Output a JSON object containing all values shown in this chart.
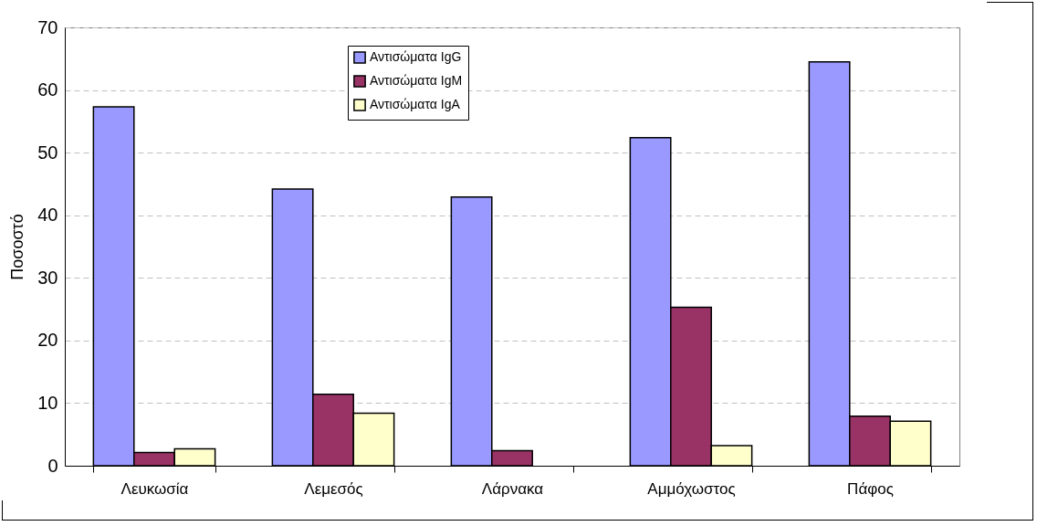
{
  "chart_data": {
    "type": "bar",
    "ylabel": "Ποσοστό",
    "categories": [
      "Λευκωσία",
      "Λεμεσός",
      "Λάρνακα",
      "Αμμόχωστος",
      "Πάφος"
    ],
    "series": [
      {
        "name": "Αντισώματα IgG",
        "color": "#9999ff",
        "values": [
          57.3,
          44.2,
          42.9,
          52.4,
          64.5
        ]
      },
      {
        "name": "Αντισώματα IgM",
        "color": "#993366",
        "values": [
          2.1,
          11.4,
          2.4,
          25.3,
          7.9
        ]
      },
      {
        "name": "Αντισώματα IgA",
        "color": "#ffffcc",
        "values": [
          2.7,
          8.4,
          null,
          3.2,
          7.1
        ]
      }
    ],
    "ylim": [
      0,
      70
    ],
    "yticks": [
      0,
      10,
      20,
      30,
      40,
      50,
      60,
      70
    ],
    "grid": "y",
    "legend": "top"
  }
}
